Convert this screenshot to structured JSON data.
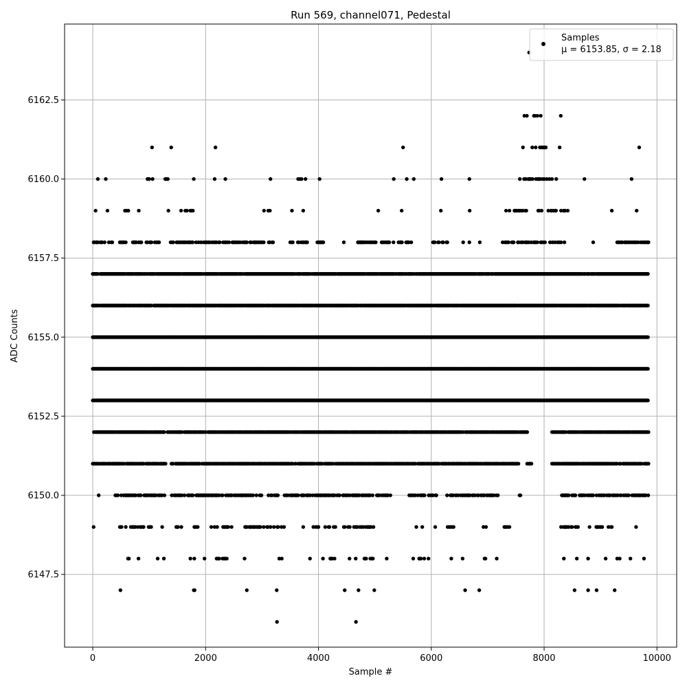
{
  "chart_data": {
    "type": "scatter",
    "title": "Run 569, channel071, Pedestal",
    "xlabel": "Sample #",
    "ylabel": "ADC Counts",
    "xlim": [
      -500,
      10350
    ],
    "ylim": [
      6145.2,
      6164.9
    ],
    "xticks": [
      0,
      2000,
      4000,
      6000,
      8000,
      10000
    ],
    "xtick_labels": [
      "0",
      "2000",
      "4000",
      "6000",
      "8000",
      "10000"
    ],
    "yticks": [
      6147.5,
      6150.0,
      6152.5,
      6155.0,
      6157.5,
      6160.0,
      6162.5
    ],
    "ytick_labels": [
      "6147.5",
      "6150.0",
      "6152.5",
      "6155.0",
      "6157.5",
      "6160.0",
      "6162.5"
    ],
    "grid": true,
    "legend": {
      "placement": "top-right",
      "label": "Samples",
      "stats_text": "μ = 6153.85, σ = 2.18"
    },
    "series": [
      {
        "name": "Samples",
        "color": "#000000",
        "marker": "circle",
        "n_points": 9850,
        "mean": 6153.85,
        "std": 2.18,
        "x_range": [
          0,
          9850
        ],
        "level_density": [
          {
            "y": 6164,
            "density": 0.0,
            "segments": [
              [
                7730,
                7740
              ]
            ]
          },
          {
            "y": 6162,
            "density": 0.35,
            "segments": [
              [
                7650,
                7700
              ],
              [
                7820,
                7950
              ],
              [
                8280,
                8310
              ]
            ]
          },
          {
            "y": 6161,
            "density": 0.4,
            "segments": [
              [
                1040,
                1060
              ],
              [
                1380,
                1400
              ],
              [
                2160,
                2190
              ],
              [
                5490,
                5510
              ],
              [
                7580,
                8070
              ],
              [
                8260,
                8290
              ],
              [
                9670,
                9700
              ]
            ]
          },
          {
            "y": 6160,
            "density": 0.4,
            "segments": [
              [
                80,
                100
              ],
              [
                220,
                240
              ],
              [
                850,
                1060
              ],
              [
                1270,
                1400
              ],
              [
                1780,
                1800
              ],
              [
                2150,
                2170
              ],
              [
                2340,
                2360
              ],
              [
                3140,
                3160
              ],
              [
                3640,
                3700
              ],
              [
                3760,
                3780
              ],
              [
                4010,
                4030
              ],
              [
                5320,
                5400
              ],
              [
                5550,
                5580
              ],
              [
                5680,
                5700
              ],
              [
                6180,
                6260
              ],
              [
                6660,
                6690
              ],
              [
                7570,
                8220
              ],
              [
                8700,
                8730
              ],
              [
                9540,
                9560
              ]
            ]
          },
          {
            "y": 6159,
            "density": 0.3,
            "segments": [
              [
                40,
                60
              ],
              [
                250,
                270
              ],
              [
                570,
                660
              ],
              [
                800,
                830
              ],
              [
                1250,
                1400
              ],
              [
                1550,
                1780
              ],
              [
                3020,
                3160
              ],
              [
                3520,
                3540
              ],
              [
                3720,
                3740
              ],
              [
                5050,
                5070
              ],
              [
                5460,
                5500
              ],
              [
                6160,
                6180
              ],
              [
                6670,
                6690
              ],
              [
                7310,
                8460
              ],
              [
                9190,
                9210
              ],
              [
                9630,
                9650
              ]
            ]
          },
          {
            "y": 6158,
            "density": 0.5,
            "segments": [
              [
                0,
                350
              ],
              [
                480,
                600
              ],
              [
                710,
                1200
              ],
              [
                1380,
                1930
              ],
              [
                1950,
                3200
              ],
              [
                3500,
                3800
              ],
              [
                3950,
                4100
              ],
              [
                4440,
                4460
              ],
              [
                4700,
                5650
              ],
              [
                6000,
                6300
              ],
              [
                6550,
                6580
              ],
              [
                6660,
                6690
              ],
              [
                6850,
                6870
              ],
              [
                7250,
                8400
              ],
              [
                8700,
                8740
              ],
              [
                8860,
                8880
              ],
              [
                9250,
                9850
              ]
            ]
          },
          {
            "y": 6157,
            "density": 0.95,
            "segments": [
              [
                0,
                9850
              ]
            ]
          },
          {
            "y": 6156,
            "density": 0.95,
            "segments": [
              [
                0,
                9850
              ]
            ]
          },
          {
            "y": 6155,
            "density": 1.0,
            "segments": [
              [
                0,
                9850
              ]
            ]
          },
          {
            "y": 6154,
            "density": 1.0,
            "segments": [
              [
                0,
                9850
              ]
            ]
          },
          {
            "y": 6153,
            "density": 1.0,
            "segments": [
              [
                0,
                9850
              ]
            ]
          },
          {
            "y": 6152,
            "density": 0.9,
            "segments": [
              [
                20,
                7710
              ],
              [
                8140,
                9850
              ]
            ]
          },
          {
            "y": 6151,
            "density": 0.85,
            "segments": [
              [
                0,
                1300
              ],
              [
                1380,
                7550
              ],
              [
                7700,
                7780
              ],
              [
                8140,
                9850
              ]
            ]
          },
          {
            "y": 6150,
            "density": 0.6,
            "segments": [
              [
                100,
                110
              ],
              [
                400,
                1300
              ],
              [
                1400,
                3000
              ],
              [
                3100,
                3300
              ],
              [
                3400,
                5300
              ],
              [
                5580,
                6100
              ],
              [
                6250,
                7180
              ],
              [
                7550,
                7610
              ],
              [
                8300,
                9850
              ]
            ]
          },
          {
            "y": 6149,
            "density": 0.45,
            "segments": [
              [
                0,
                60
              ],
              [
                480,
                1100
              ],
              [
                1220,
                1240
              ],
              [
                1480,
                1600
              ],
              [
                1800,
                1860
              ],
              [
                2100,
                2500
              ],
              [
                2700,
                3400
              ],
              [
                3720,
                3740
              ],
              [
                3880,
                4300
              ],
              [
                4450,
                4980
              ],
              [
                5720,
                5850
              ],
              [
                6060,
                6080
              ],
              [
                6260,
                6400
              ],
              [
                6850,
                7070
              ],
              [
                7280,
                7420
              ],
              [
                8300,
                8610
              ],
              [
                8790,
                9070
              ],
              [
                9140,
                9220
              ],
              [
                9620,
                9640
              ]
            ]
          },
          {
            "y": 6148,
            "density": 0.3,
            "segments": [
              [
                610,
                660
              ],
              [
                800,
                820
              ],
              [
                1140,
                1160
              ],
              [
                1250,
                1270
              ],
              [
                1720,
                1740
              ],
              [
                1800,
                1860
              ],
              [
                1970,
                1990
              ],
              [
                2120,
                2400
              ],
              [
                2680,
                2700
              ],
              [
                3200,
                3370
              ],
              [
                3840,
                3860
              ],
              [
                4070,
                4090
              ],
              [
                4210,
                4360
              ],
              [
                4540,
                4560
              ],
              [
                4650,
                4670
              ],
              [
                4800,
                5000
              ],
              [
                5200,
                5220
              ],
              [
                5680,
                5950
              ],
              [
                6340,
                6400
              ],
              [
                6540,
                6570
              ],
              [
                6840,
                6960
              ],
              [
                7150,
                7170
              ],
              [
                8340,
                8360
              ],
              [
                8580,
                8640
              ],
              [
                8770,
                8790
              ],
              [
                8900,
                8960
              ],
              [
                9080,
                9100
              ],
              [
                9250,
                9340
              ],
              [
                9520,
                9540
              ],
              [
                9760,
                9780
              ]
            ]
          },
          {
            "y": 6147,
            "density": 0.2,
            "segments": [
              [
                480,
                500
              ],
              [
                1790,
                1860
              ],
              [
                2720,
                2740
              ],
              [
                3250,
                3270
              ],
              [
                4420,
                4520
              ],
              [
                4700,
                4720
              ],
              [
                4980,
                5000
              ],
              [
                5680,
                5800
              ],
              [
                6590,
                6610
              ],
              [
                6840,
                6860
              ],
              [
                8530,
                8550
              ],
              [
                8770,
                8790
              ],
              [
                8920,
                8940
              ],
              [
                9240,
                9260
              ]
            ]
          },
          {
            "y": 6146,
            "density": 0.0,
            "segments": [
              [
                3260,
                3270
              ],
              [
                4660,
                4670
              ]
            ]
          }
        ]
      }
    ]
  }
}
